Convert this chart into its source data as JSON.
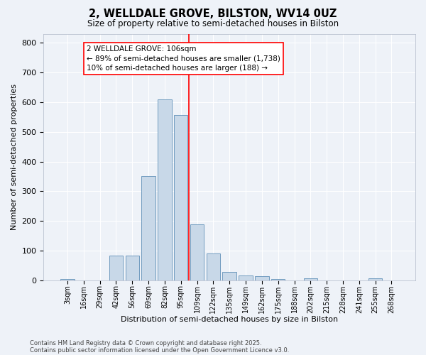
{
  "title": "2, WELLDALE GROVE, BILSTON, WV14 0UZ",
  "subtitle": "Size of property relative to semi-detached houses in Bilston",
  "xlabel": "Distribution of semi-detached houses by size in Bilston",
  "ylabel": "Number of semi-detached properties",
  "bar_color": "#c8d8e8",
  "bar_edge_color": "#6090b8",
  "background_color": "#eef2f8",
  "grid_color": "#ffffff",
  "categories": [
    "3sqm",
    "16sqm",
    "29sqm",
    "42sqm",
    "56sqm",
    "69sqm",
    "82sqm",
    "95sqm",
    "109sqm",
    "122sqm",
    "135sqm",
    "149sqm",
    "162sqm",
    "175sqm",
    "188sqm",
    "202sqm",
    "215sqm",
    "228sqm",
    "241sqm",
    "255sqm",
    "268sqm"
  ],
  "values": [
    5,
    0,
    0,
    83,
    83,
    352,
    610,
    557,
    190,
    92,
    30,
    18,
    15,
    5,
    0,
    8,
    0,
    0,
    0,
    8,
    0
  ],
  "property_line_index": 8,
  "annotation_text": "2 WELLDALE GROVE: 106sqm\n← 89% of semi-detached houses are smaller (1,738)\n10% of semi-detached houses are larger (188) →",
  "ylim": [
    0,
    830
  ],
  "yticks": [
    0,
    100,
    200,
    300,
    400,
    500,
    600,
    700,
    800
  ],
  "footnote1": "Contains HM Land Registry data © Crown copyright and database right 2025.",
  "footnote2": "Contains public sector information licensed under the Open Government Licence v3.0."
}
